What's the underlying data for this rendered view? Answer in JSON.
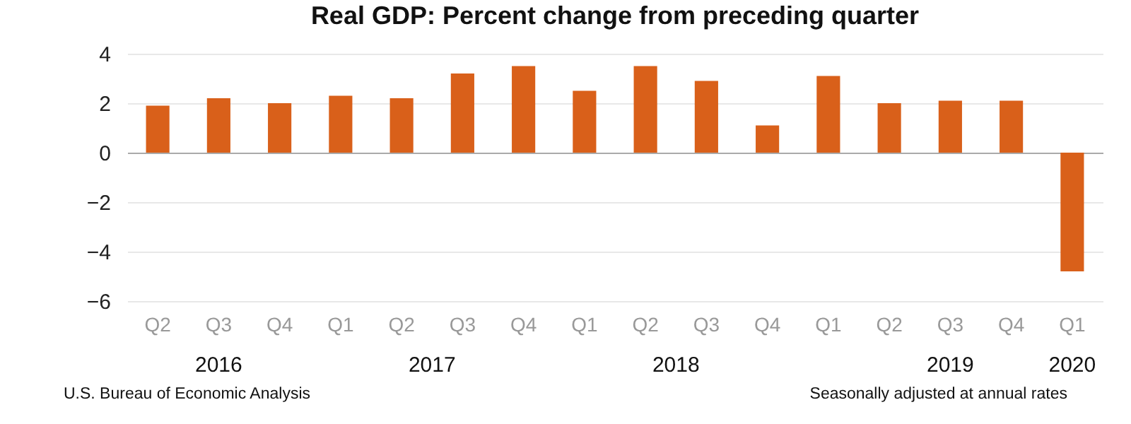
{
  "chart_data": {
    "type": "bar",
    "title": "Real GDP:  Percent change from preceding quarter",
    "categories": [
      "Q2",
      "Q3",
      "Q4",
      "Q1",
      "Q2",
      "Q3",
      "Q4",
      "Q1",
      "Q2",
      "Q3",
      "Q4",
      "Q1",
      "Q2",
      "Q3",
      "Q4",
      "Q1"
    ],
    "values": [
      1.9,
      2.2,
      2.0,
      2.3,
      2.2,
      3.2,
      3.5,
      2.5,
      3.5,
      2.9,
      1.1,
      3.1,
      2.0,
      2.1,
      2.1,
      -4.8
    ],
    "color": "#d9601a",
    "ylim": [
      -6,
      4
    ],
    "yticks": [
      -6,
      -4,
      -2,
      0,
      2,
      4
    ],
    "grid": "y",
    "annotations": [
      "2016",
      "2017",
      "2018",
      "2019",
      "2020",
      "U.S. Bureau of Economic Analysis",
      "Seasonally adjusted at annual rates"
    ]
  }
}
